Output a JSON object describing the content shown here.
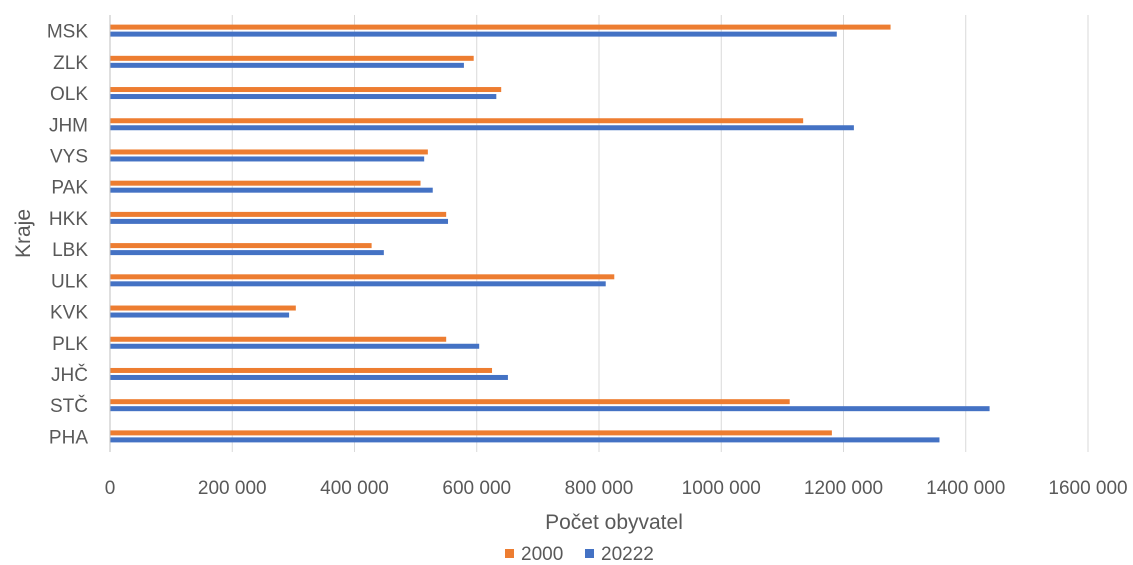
{
  "chart_data": {
    "type": "bar",
    "orientation": "horizontal",
    "title": "",
    "xlabel": "Počet obyvatel",
    "ylabel": "Kraje",
    "xlim": [
      0,
      1600000
    ],
    "x_ticks": [
      0,
      200000,
      400000,
      600000,
      800000,
      1000000,
      1200000,
      1400000,
      1600000
    ],
    "x_tick_labels": [
      "0",
      "200 000",
      "400 000",
      "600 000",
      "800 000",
      "1000 000",
      "1200 000",
      "1400 000",
      "1600 000"
    ],
    "grid": "vertical",
    "legend_position": "bottom",
    "categories": [
      "PHA",
      "STČ",
      "JHČ",
      "PLK",
      "KVK",
      "ULK",
      "LBK",
      "HKK",
      "PAK",
      "VYS",
      "JHM",
      "OLK",
      "ZLK",
      "MSK"
    ],
    "series": [
      {
        "name": "2000",
        "color": "#ED7D31",
        "values": [
          1181000,
          1112000,
          625000,
          550000,
          304000,
          825000,
          428000,
          550000,
          508000,
          520000,
          1134000,
          640000,
          595000,
          1277000
        ]
      },
      {
        "name": "20222",
        "color": "#4472C4",
        "values": [
          1357000,
          1439000,
          651000,
          604000,
          293000,
          811000,
          448000,
          553000,
          528000,
          514000,
          1217000,
          632000,
          579000,
          1189000
        ]
      }
    ]
  }
}
